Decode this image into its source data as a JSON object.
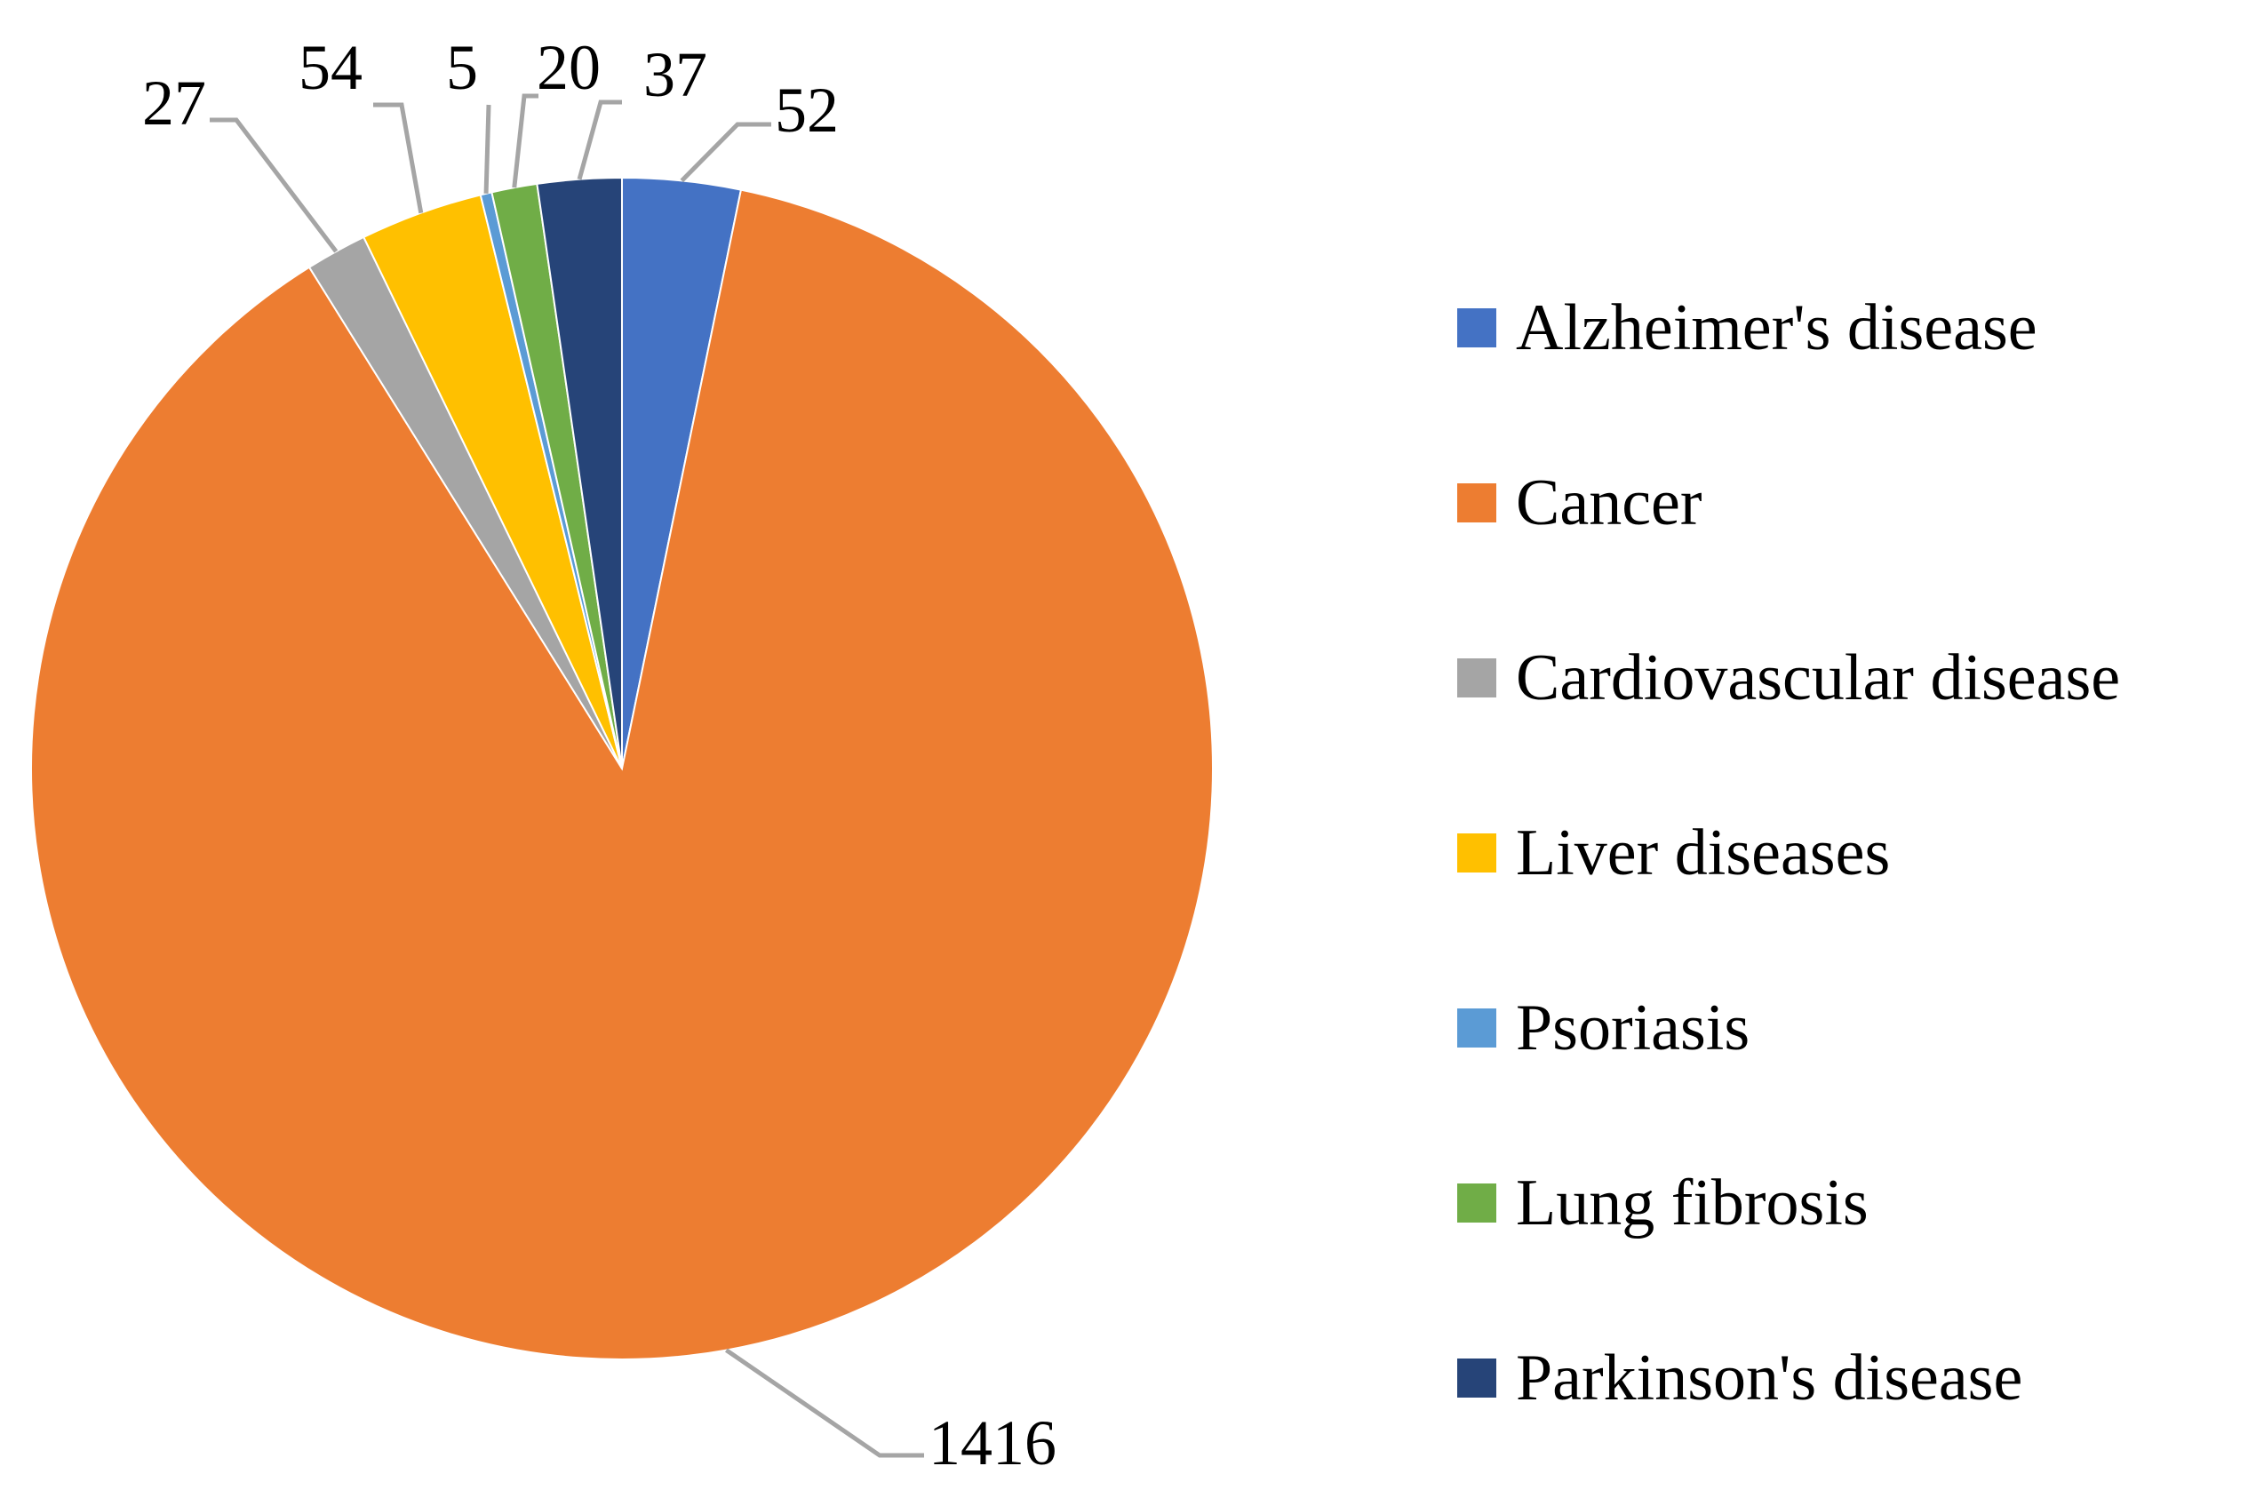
{
  "chart_data": {
    "type": "pie",
    "title": "",
    "start_angle_deg": 0,
    "direction": "clockwise",
    "legend_position": "right",
    "slices": [
      {
        "label": "Alzheimer's disease",
        "value": 52,
        "value_label": "52",
        "color": "#4472C4"
      },
      {
        "label": "Cancer",
        "value": 1416,
        "value_label": "1416",
        "color": "#ED7D31"
      },
      {
        "label": "Cardiovascular disease",
        "value": 27,
        "value_label": "27",
        "color": "#A5A5A5"
      },
      {
        "label": "Liver diseases",
        "value": 54,
        "value_label": "54",
        "color": "#FFC000"
      },
      {
        "label": "Psoriasis",
        "value": 5,
        "value_label": "5",
        "color": "#5B9BD5"
      },
      {
        "label": "Lung fibrosis",
        "value": 20,
        "value_label": "20",
        "color": "#70AD47"
      },
      {
        "label": "Parkinson's disease",
        "value": 37,
        "value_label": "37",
        "color": "#264478"
      }
    ],
    "leader_line_color": "#A5A5A5",
    "slice_border_color": "#FFFFFF"
  }
}
